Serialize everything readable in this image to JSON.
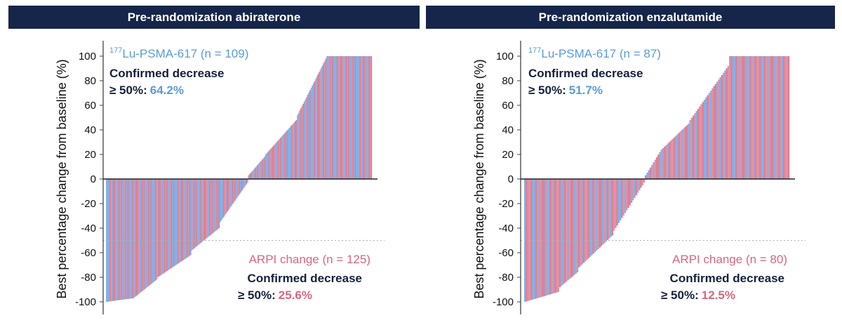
{
  "panels": [
    {
      "title": "Pre-randomization abiraterone",
      "ylabel": "Best percentage change from baseline (%)",
      "lu_label": {
        "sup": "177",
        "text": "Lu-PSMA-617 (n = 109)"
      },
      "lu_confirmed_line1": "Confirmed decrease",
      "lu_confirmed_line2": "≥ 50%:",
      "lu_confirmed_pct": "64.2%",
      "arpi_label": "ARPI change (n = 125)",
      "arpi_confirmed_line1": "Confirmed decrease",
      "arpi_confirmed_line2": "≥ 50%:",
      "arpi_confirmed_pct": "25.6%"
    },
    {
      "title": "Pre-randomization enzalutamide",
      "ylabel": "Best percentage change from baseline (%)",
      "lu_label": {
        "sup": "177",
        "text": "Lu-PSMA-617 (n = 87)"
      },
      "lu_confirmed_line1": "Confirmed decrease",
      "lu_confirmed_line2": "≥ 50%:",
      "lu_confirmed_pct": "51.7%",
      "arpi_label": "ARPI change (n = 80)",
      "arpi_confirmed_line1": "Confirmed decrease",
      "arpi_confirmed_line2": "≥ 50%:",
      "arpi_confirmed_pct": "12.5%"
    }
  ],
  "chart_data": [
    {
      "type": "bar",
      "title": "Pre-randomization abiraterone",
      "ylabel": "Best percentage change from baseline (%)",
      "ylim": [
        -100,
        100
      ],
      "yticks": [
        100,
        80,
        60,
        40,
        20,
        0,
        -20,
        -40,
        -60,
        -80,
        -100
      ],
      "reference_line": -50,
      "grid": false,
      "colors": {
        "lu": "#7fb2ea",
        "arpi": "#e07f92"
      },
      "series": [
        {
          "name": "177Lu-PSMA-617",
          "n": 109,
          "color": "#7fb2ea"
        },
        {
          "name": "ARPI change",
          "n": 125,
          "color": "#e07f92"
        }
      ],
      "segments": [
        {
          "start": -100,
          "end": -97,
          "count": 25
        },
        {
          "start": -96,
          "end": -82,
          "count": 20
        },
        {
          "start": -80,
          "end": -62,
          "count": 30
        },
        {
          "start": -58,
          "end": -40,
          "count": 25
        },
        {
          "start": -35,
          "end": -3,
          "count": 25
        },
        {
          "start": 3,
          "end": 18,
          "count": 15
        },
        {
          "start": 20,
          "end": 48,
          "count": 28
        },
        {
          "start": 52,
          "end": 98,
          "count": 26
        },
        {
          "start": 100,
          "end": 100,
          "count": 40
        }
      ],
      "arm_pattern": "LLLARLAARLLARALLRALA"
    },
    {
      "type": "bar",
      "title": "Pre-randomization enzalutamide",
      "ylabel": "Best percentage change from baseline (%)",
      "ylim": [
        -100,
        100
      ],
      "yticks": [
        100,
        80,
        60,
        40,
        20,
        0,
        -20,
        -40,
        -60,
        -80,
        -100
      ],
      "reference_line": -50,
      "grid": false,
      "colors": {
        "lu": "#7fb2ea",
        "arpi": "#e07f92"
      },
      "series": [
        {
          "name": "177Lu-PSMA-617",
          "n": 87,
          "color": "#7fb2ea"
        },
        {
          "name": "ARPI change",
          "n": 80,
          "color": "#e07f92"
        }
      ],
      "segments": [
        {
          "start": -100,
          "end": -92,
          "count": 22
        },
        {
          "start": -88,
          "end": -76,
          "count": 12
        },
        {
          "start": -72,
          "end": -46,
          "count": 22
        },
        {
          "start": -42,
          "end": -3,
          "count": 20
        },
        {
          "start": 3,
          "end": 22,
          "count": 10
        },
        {
          "start": 24,
          "end": 45,
          "count": 18
        },
        {
          "start": 48,
          "end": 92,
          "count": 25
        },
        {
          "start": 100,
          "end": 100,
          "count": 38
        }
      ],
      "arm_pattern": "LARRALLARLRAALRLAR"
    }
  ]
}
